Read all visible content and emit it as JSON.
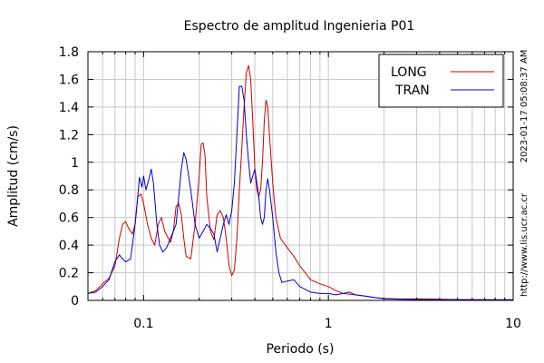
{
  "chart_data": {
    "type": "line",
    "title": "Espectro de amplitud Ingenieria P01",
    "xlabel": "Periodo (s)",
    "ylabel": "Amplitud (cm/s)",
    "x_scale": "log",
    "xlim": [
      0.05,
      10
    ],
    "ylim": [
      0,
      1.8
    ],
    "grid": true,
    "legend_position": "top-right",
    "x_ticks": [
      {
        "value": 0.1,
        "label": "0.1"
      },
      {
        "value": 1,
        "label": "1"
      },
      {
        "value": 10,
        "label": "10"
      }
    ],
    "y_ticks": [
      {
        "value": 0,
        "label": "0"
      },
      {
        "value": 0.2,
        "label": "0.2"
      },
      {
        "value": 0.4,
        "label": "0.4"
      },
      {
        "value": 0.6,
        "label": "0.6"
      },
      {
        "value": 0.8,
        "label": "0.8"
      },
      {
        "value": 1.0,
        "label": "1"
      },
      {
        "value": 1.2,
        "label": "1.2"
      },
      {
        "value": 1.4,
        "label": "1.4"
      },
      {
        "value": 1.6,
        "label": "1.6"
      },
      {
        "value": 1.8,
        "label": "1.8"
      }
    ],
    "series": [
      {
        "name": "LONG",
        "color": "#cc0000",
        "points": [
          [
            0.05,
            0.05
          ],
          [
            0.055,
            0.07
          ],
          [
            0.06,
            0.12
          ],
          [
            0.065,
            0.16
          ],
          [
            0.07,
            0.25
          ],
          [
            0.074,
            0.45
          ],
          [
            0.077,
            0.55
          ],
          [
            0.08,
            0.57
          ],
          [
            0.083,
            0.52
          ],
          [
            0.087,
            0.48
          ],
          [
            0.09,
            0.55
          ],
          [
            0.093,
            0.75
          ],
          [
            0.097,
            0.77
          ],
          [
            0.1,
            0.7
          ],
          [
            0.105,
            0.55
          ],
          [
            0.11,
            0.45
          ],
          [
            0.115,
            0.4
          ],
          [
            0.12,
            0.55
          ],
          [
            0.125,
            0.6
          ],
          [
            0.13,
            0.5
          ],
          [
            0.14,
            0.42
          ],
          [
            0.145,
            0.5
          ],
          [
            0.15,
            0.68
          ],
          [
            0.155,
            0.7
          ],
          [
            0.16,
            0.62
          ],
          [
            0.165,
            0.45
          ],
          [
            0.17,
            0.32
          ],
          [
            0.18,
            0.3
          ],
          [
            0.19,
            0.55
          ],
          [
            0.2,
            0.9
          ],
          [
            0.205,
            1.13
          ],
          [
            0.21,
            1.14
          ],
          [
            0.215,
            1.05
          ],
          [
            0.22,
            0.75
          ],
          [
            0.23,
            0.5
          ],
          [
            0.24,
            0.44
          ],
          [
            0.25,
            0.62
          ],
          [
            0.26,
            0.65
          ],
          [
            0.27,
            0.6
          ],
          [
            0.28,
            0.45
          ],
          [
            0.29,
            0.25
          ],
          [
            0.3,
            0.18
          ],
          [
            0.31,
            0.22
          ],
          [
            0.32,
            0.45
          ],
          [
            0.33,
            0.8
          ],
          [
            0.34,
            1.1
          ],
          [
            0.35,
            1.4
          ],
          [
            0.36,
            1.65
          ],
          [
            0.37,
            1.7
          ],
          [
            0.38,
            1.6
          ],
          [
            0.39,
            1.3
          ],
          [
            0.4,
            0.95
          ],
          [
            0.41,
            0.8
          ],
          [
            0.42,
            0.75
          ],
          [
            0.43,
            0.8
          ],
          [
            0.44,
            1.0
          ],
          [
            0.45,
            1.3
          ],
          [
            0.46,
            1.45
          ],
          [
            0.47,
            1.4
          ],
          [
            0.48,
            1.2
          ],
          [
            0.5,
            0.85
          ],
          [
            0.52,
            0.6
          ],
          [
            0.55,
            0.45
          ],
          [
            0.6,
            0.38
          ],
          [
            0.65,
            0.32
          ],
          [
            0.7,
            0.25
          ],
          [
            0.75,
            0.2
          ],
          [
            0.8,
            0.15
          ],
          [
            0.9,
            0.12
          ],
          [
            1.0,
            0.1
          ],
          [
            1.1,
            0.07
          ],
          [
            1.2,
            0.05
          ],
          [
            1.4,
            0.04
          ],
          [
            1.6,
            0.03
          ],
          [
            1.8,
            0.02
          ],
          [
            2.0,
            0.015
          ],
          [
            2.5,
            0.01
          ],
          [
            3,
            0.012
          ],
          [
            4,
            0.008
          ],
          [
            5,
            0.006
          ],
          [
            6,
            0.006
          ],
          [
            8,
            0.005
          ],
          [
            10,
            0.005
          ]
        ]
      },
      {
        "name": "TRAN",
        "color": "#0000cc",
        "points": [
          [
            0.05,
            0.05
          ],
          [
            0.055,
            0.06
          ],
          [
            0.06,
            0.1
          ],
          [
            0.065,
            0.15
          ],
          [
            0.07,
            0.28
          ],
          [
            0.074,
            0.33
          ],
          [
            0.077,
            0.3
          ],
          [
            0.08,
            0.28
          ],
          [
            0.085,
            0.3
          ],
          [
            0.09,
            0.55
          ],
          [
            0.093,
            0.75
          ],
          [
            0.095,
            0.89
          ],
          [
            0.098,
            0.82
          ],
          [
            0.1,
            0.9
          ],
          [
            0.103,
            0.8
          ],
          [
            0.107,
            0.88
          ],
          [
            0.11,
            0.95
          ],
          [
            0.113,
            0.85
          ],
          [
            0.118,
            0.55
          ],
          [
            0.122,
            0.4
          ],
          [
            0.127,
            0.35
          ],
          [
            0.133,
            0.38
          ],
          [
            0.14,
            0.45
          ],
          [
            0.15,
            0.55
          ],
          [
            0.16,
            0.95
          ],
          [
            0.165,
            1.07
          ],
          [
            0.17,
            1.02
          ],
          [
            0.18,
            0.8
          ],
          [
            0.19,
            0.55
          ],
          [
            0.2,
            0.45
          ],
          [
            0.21,
            0.5
          ],
          [
            0.22,
            0.55
          ],
          [
            0.23,
            0.52
          ],
          [
            0.24,
            0.48
          ],
          [
            0.25,
            0.35
          ],
          [
            0.26,
            0.45
          ],
          [
            0.27,
            0.55
          ],
          [
            0.28,
            0.62
          ],
          [
            0.29,
            0.55
          ],
          [
            0.3,
            0.65
          ],
          [
            0.31,
            0.85
          ],
          [
            0.32,
            1.2
          ],
          [
            0.33,
            1.55
          ],
          [
            0.34,
            1.55
          ],
          [
            0.35,
            1.45
          ],
          [
            0.36,
            1.2
          ],
          [
            0.37,
            1.0
          ],
          [
            0.38,
            0.85
          ],
          [
            0.39,
            0.9
          ],
          [
            0.4,
            0.95
          ],
          [
            0.41,
            0.85
          ],
          [
            0.42,
            0.75
          ],
          [
            0.43,
            0.6
          ],
          [
            0.44,
            0.55
          ],
          [
            0.45,
            0.6
          ],
          [
            0.46,
            0.8
          ],
          [
            0.47,
            0.88
          ],
          [
            0.48,
            0.8
          ],
          [
            0.5,
            0.6
          ],
          [
            0.52,
            0.35
          ],
          [
            0.54,
            0.2
          ],
          [
            0.56,
            0.13
          ],
          [
            0.6,
            0.14
          ],
          [
            0.65,
            0.15
          ],
          [
            0.7,
            0.1
          ],
          [
            0.75,
            0.08
          ],
          [
            0.8,
            0.06
          ],
          [
            0.9,
            0.05
          ],
          [
            1.0,
            0.05
          ],
          [
            1.1,
            0.04
          ],
          [
            1.2,
            0.05
          ],
          [
            1.3,
            0.06
          ],
          [
            1.4,
            0.04
          ],
          [
            1.6,
            0.03
          ],
          [
            1.8,
            0.02
          ],
          [
            2.0,
            0.012
          ],
          [
            2.5,
            0.008
          ],
          [
            3,
            0.006
          ],
          [
            4,
            0.005
          ],
          [
            5,
            0.005
          ],
          [
            6,
            0.004
          ],
          [
            8,
            0.004
          ],
          [
            10,
            0.004
          ]
        ]
      }
    ]
  },
  "side_annotations": {
    "timestamp": "2023-01-17 05:08:37 AM",
    "url": "http://www.lis.ucr.ac.cr"
  }
}
